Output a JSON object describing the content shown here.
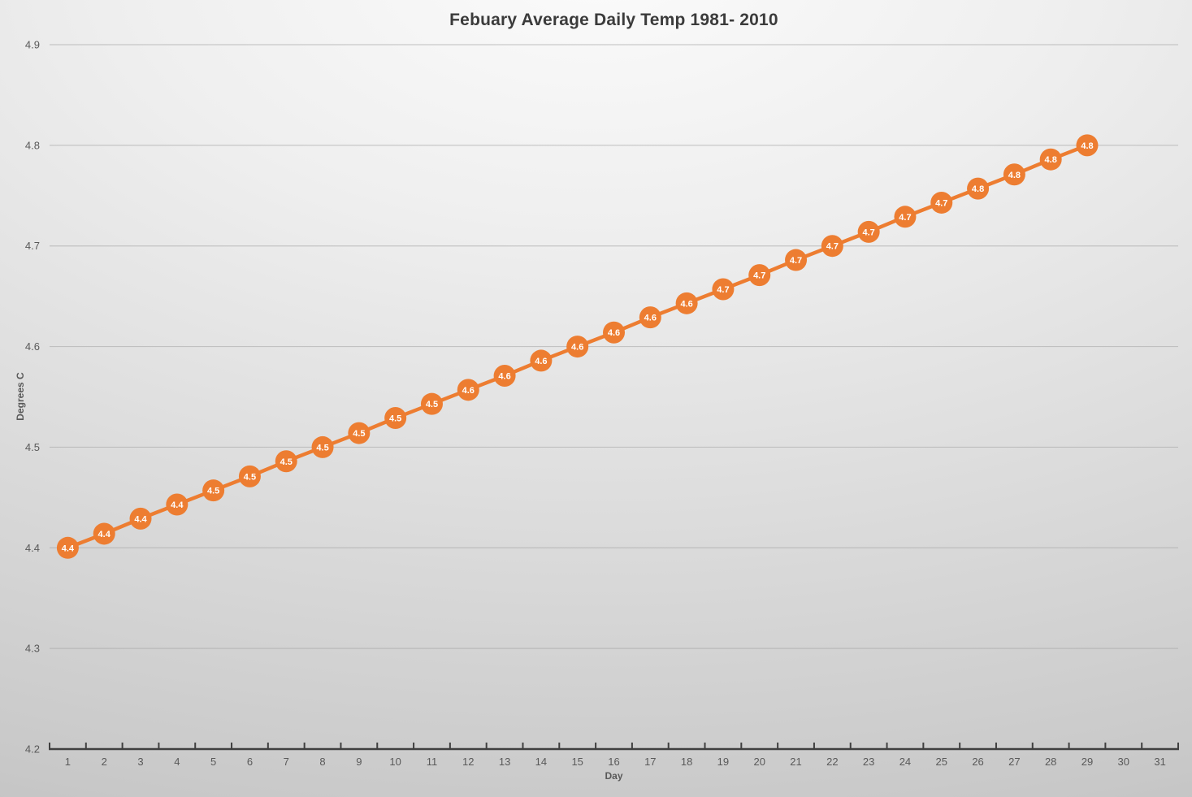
{
  "chart_data": {
    "type": "line",
    "title": "Febuary Average Daily Temp 1981- 2010",
    "xlabel": "Day",
    "ylabel": "Degrees C",
    "x": [
      1,
      2,
      3,
      4,
      5,
      6,
      7,
      8,
      9,
      10,
      11,
      12,
      13,
      14,
      15,
      16,
      17,
      18,
      19,
      20,
      21,
      22,
      23,
      24,
      25,
      26,
      27,
      28,
      29
    ],
    "values": [
      4.4,
      4.414,
      4.429,
      4.443,
      4.457,
      4.471,
      4.486,
      4.5,
      4.514,
      4.529,
      4.543,
      4.557,
      4.571,
      4.586,
      4.6,
      4.614,
      4.629,
      4.643,
      4.657,
      4.671,
      4.686,
      4.7,
      4.714,
      4.729,
      4.743,
      4.757,
      4.771,
      4.786,
      4.8
    ],
    "point_labels": [
      "4.4",
      "4.4",
      "4.4",
      "4.4",
      "4.5",
      "4.5",
      "4.5",
      "4.5",
      "4.5",
      "4.5",
      "4.5",
      "4.6",
      "4.6",
      "4.6",
      "4.6",
      "4.6",
      "4.6",
      "4.6",
      "4.7",
      "4.7",
      "4.7",
      "4.7",
      "4.7",
      "4.7",
      "4.7",
      "4.8",
      "4.8",
      "4.8",
      "4.8"
    ],
    "x_ticks": [
      "1",
      "2",
      "3",
      "4",
      "5",
      "6",
      "7",
      "8",
      "9",
      "10",
      "11",
      "12",
      "13",
      "14",
      "15",
      "16",
      "17",
      "18",
      "19",
      "20",
      "21",
      "22",
      "23",
      "24",
      "25",
      "26",
      "27",
      "28",
      "29",
      "30",
      "31"
    ],
    "y_ticks": [
      "4.2",
      "4.3",
      "4.4",
      "4.5",
      "4.6",
      "4.7",
      "4.8",
      "4.9"
    ],
    "ylim": [
      4.2,
      4.9
    ],
    "grid": true,
    "legend_position": "none",
    "colors": {
      "series": "#ED7D31",
      "marker_label": "#FFFFFF",
      "gridline": "#A6A6A6",
      "axis_line": "#3F3F3F",
      "tick_label": "#595959",
      "title": "#3B3B3B",
      "axis_title": "#595959"
    }
  }
}
